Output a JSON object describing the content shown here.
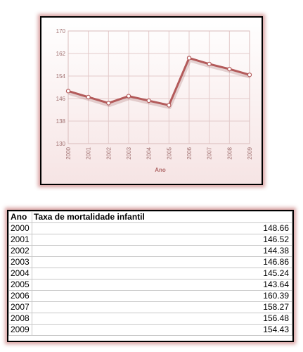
{
  "chart_data": {
    "type": "line",
    "x": [
      "2000",
      "2001",
      "2002",
      "2003",
      "2004",
      "2005",
      "2006",
      "2007",
      "2008",
      "2009"
    ],
    "values": [
      148.66,
      146.52,
      144.38,
      146.86,
      145.24,
      143.64,
      160.39,
      158.27,
      156.48,
      154.43
    ],
    "xlabel": "Ano",
    "ylabel": "",
    "ylim": [
      130,
      170
    ],
    "yticks": [
      "130",
      "138",
      "146",
      "154",
      "162",
      "170"
    ],
    "grid": true,
    "color": "#b35a5a"
  },
  "table": {
    "headers": [
      "Ano",
      "Taxa de mortalidade infantil"
    ],
    "rows": [
      [
        "2000",
        "148.66"
      ],
      [
        "2001",
        "146.52"
      ],
      [
        "2002",
        "144.38"
      ],
      [
        "2003",
        "146.86"
      ],
      [
        "2004",
        "145.24"
      ],
      [
        "2005",
        "143.64"
      ],
      [
        "2006",
        "160.39"
      ],
      [
        "2007",
        "158.27"
      ],
      [
        "2008",
        "156.48"
      ],
      [
        "2009",
        "154.43"
      ]
    ]
  }
}
